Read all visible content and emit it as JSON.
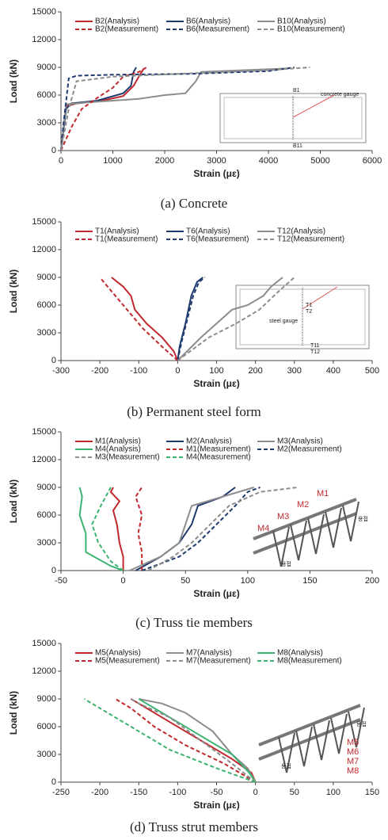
{
  "chart_data": [
    {
      "type": "line",
      "caption": "(a) Concrete",
      "x_label": "Strain (με)",
      "y_label": "Load (kN)",
      "xlim": [
        0,
        6000
      ],
      "xticks": [
        0,
        1000,
        2000,
        3000,
        4000,
        5000,
        6000
      ],
      "ylim": [
        0,
        15000
      ],
      "yticks": [
        0,
        3000,
        6000,
        9000,
        12000,
        15000
      ],
      "inset_labels": [
        "B1",
        "concrete gauge",
        "B11"
      ],
      "series": [
        {
          "name": "B2(Analysis)",
          "color": "#c0282d",
          "dash": false,
          "x": [
            0,
            100,
            300,
            800,
            1200,
            1400,
            1500,
            1600
          ],
          "values": [
            0,
            4800,
            5100,
            5400,
            5900,
            7000,
            8000,
            8900
          ]
        },
        {
          "name": "B6(Analysis)",
          "color": "#1f3a6e",
          "dash": false,
          "x": [
            0,
            100,
            200,
            700,
            1200,
            1350,
            1400,
            1450
          ],
          "values": [
            0,
            4500,
            5100,
            5400,
            6200,
            7000,
            8500,
            9000
          ]
        },
        {
          "name": "B10(Analysis)",
          "color": "#8c8c8c",
          "dash": false,
          "x": [
            0,
            100,
            500,
            1500,
            2000,
            2400,
            2600,
            2700,
            4400
          ],
          "values": [
            0,
            5000,
            5200,
            5600,
            6000,
            6200,
            7500,
            8500,
            8900
          ]
        },
        {
          "name": "B2(Measurement)",
          "color": "#c0282d",
          "dash": true,
          "x": [
            0,
            200,
            400,
            700,
            1000,
            1200,
            1500,
            1650
          ],
          "values": [
            0,
            2500,
            4500,
            5700,
            6800,
            8000,
            8500,
            9000
          ]
        },
        {
          "name": "B6(Measurement)",
          "color": "#1f3a6e",
          "dash": true,
          "x": [
            0,
            50,
            150,
            300,
            1000,
            2500,
            4000,
            4500
          ],
          "values": [
            0,
            3000,
            7800,
            8100,
            8200,
            8300,
            8600,
            9000
          ]
        },
        {
          "name": "B10(Measurement)",
          "color": "#8c8c8c",
          "dash": true,
          "x": [
            0,
            150,
            300,
            1000,
            2700,
            4000,
            4800
          ],
          "values": [
            0,
            4500,
            7500,
            8000,
            8400,
            8700,
            9000
          ]
        }
      ]
    },
    {
      "type": "line",
      "caption": "(b) Permanent steel form",
      "x_label": "Strain (με)",
      "y_label": "Load (kN)",
      "xlim": [
        -300,
        500
      ],
      "xticks": [
        -300,
        -200,
        -100,
        0,
        100,
        200,
        300,
        400,
        500
      ],
      "ylim": [
        0,
        15000
      ],
      "yticks": [
        0,
        3000,
        6000,
        9000,
        12000,
        15000
      ],
      "inset_labels": [
        "T1",
        "T2",
        "steel gauge",
        "T11",
        "T12"
      ],
      "series": [
        {
          "name": "T1(Analysis)",
          "color": "#c0282d",
          "dash": false,
          "x": [
            0,
            -10,
            -40,
            -80,
            -110,
            -120,
            -140,
            -170
          ],
          "values": [
            0,
            1000,
            2500,
            4000,
            5500,
            7000,
            8000,
            9000
          ]
        },
        {
          "name": "T6(Analysis)",
          "color": "#1f3a6e",
          "dash": false,
          "x": [
            0,
            5,
            20,
            35,
            50,
            65
          ],
          "values": [
            0,
            1500,
            4000,
            7000,
            8500,
            9000
          ]
        },
        {
          "name": "T12(Analysis)",
          "color": "#8c8c8c",
          "dash": false,
          "x": [
            0,
            60,
            100,
            140,
            180,
            220,
            240,
            270
          ],
          "values": [
            0,
            2500,
            4000,
            5500,
            6000,
            7000,
            8000,
            9000
          ]
        },
        {
          "name": "T1(Measurement)",
          "color": "#c0282d",
          "dash": true,
          "x": [
            0,
            -40,
            -90,
            -140,
            -180,
            -200
          ],
          "values": [
            0,
            1500,
            3500,
            6000,
            8000,
            9000
          ]
        },
        {
          "name": "T6(Measurement)",
          "color": "#1f3a6e",
          "dash": true,
          "x": [
            0,
            10,
            25,
            40,
            55,
            70
          ],
          "values": [
            0,
            2000,
            4500,
            7000,
            8500,
            9000
          ]
        },
        {
          "name": "T12(Measurement)",
          "color": "#8c8c8c",
          "dash": true,
          "x": [
            0,
            80,
            150,
            210,
            260,
            300
          ],
          "values": [
            0,
            2500,
            4000,
            5500,
            7500,
            9000
          ]
        }
      ]
    },
    {
      "type": "line",
      "caption": "(c) Truss tie members",
      "x_label": "Strain (με)",
      "y_label": "Load (kN)",
      "xlim": [
        -50,
        200
      ],
      "xticks": [
        -50,
        0,
        50,
        100,
        150,
        200
      ],
      "ylim": [
        0,
        15000
      ],
      "yticks": [
        0,
        3000,
        6000,
        9000,
        12000,
        15000
      ],
      "inset_labels": [
        "M1",
        "M2",
        "M3",
        "M4",
        "용접",
        "용접"
      ],
      "series": [
        {
          "name": "M1(Analysis)",
          "color": "#c0282d",
          "dash": false,
          "x": [
            0,
            0,
            -3,
            -5,
            -8,
            -3,
            -10,
            -8
          ],
          "values": [
            0,
            1500,
            3000,
            5000,
            6500,
            7500,
            8500,
            9000
          ]
        },
        {
          "name": "M2(Analysis)",
          "color": "#1f3a6e",
          "dash": false,
          "x": [
            10,
            30,
            45,
            55,
            60,
            80,
            90
          ],
          "values": [
            0,
            1500,
            3000,
            5000,
            7000,
            8000,
            9000
          ]
        },
        {
          "name": "M3(Analysis)",
          "color": "#8c8c8c",
          "dash": false,
          "x": [
            5,
            30,
            45,
            50,
            55,
            80,
            105
          ],
          "values": [
            0,
            1500,
            3000,
            5000,
            7000,
            8000,
            9000
          ]
        },
        {
          "name": "M4(Analysis)",
          "color": "#3cb371",
          "dash": false,
          "x": [
            0,
            -10,
            -30,
            -30,
            -35,
            -33,
            -35
          ],
          "values": [
            0,
            500,
            2000,
            4000,
            6000,
            8000,
            9000
          ]
        },
        {
          "name": "M1(Measurement)",
          "color": "#c0282d",
          "dash": true,
          "x": [
            15,
            15,
            12,
            15,
            10,
            15
          ],
          "values": [
            0,
            2000,
            4000,
            6000,
            8000,
            9000
          ]
        },
        {
          "name": "M2(Measurement)",
          "color": "#1f3a6e",
          "dash": true,
          "x": [
            15,
            45,
            60,
            75,
            90,
            100,
            110
          ],
          "values": [
            0,
            1500,
            3000,
            5000,
            7000,
            8500,
            9000
          ]
        },
        {
          "name": "M3(Measurement)",
          "color": "#8c8c8c",
          "dash": true,
          "x": [
            20,
            40,
            55,
            70,
            85,
            110,
            140
          ],
          "values": [
            0,
            1500,
            3000,
            5000,
            7000,
            8500,
            9000
          ]
        },
        {
          "name": "M4(Measurement)",
          "color": "#3cb371",
          "dash": true,
          "x": [
            0,
            -10,
            -20,
            -25,
            -18,
            -12,
            -10
          ],
          "values": [
            0,
            1000,
            3000,
            5000,
            7000,
            8500,
            9000
          ]
        }
      ]
    },
    {
      "type": "line",
      "caption": "(d) Truss strut members",
      "x_label": "Strain (με)",
      "y_label": "Load (kN)",
      "xlim": [
        -250,
        150
      ],
      "xticks": [
        -250,
        -200,
        -150,
        -100,
        -50,
        0,
        50,
        100,
        150
      ],
      "ylim": [
        0,
        15000
      ],
      "yticks": [
        0,
        3000,
        6000,
        9000,
        12000,
        15000
      ],
      "inset_labels": [
        "M5",
        "M6",
        "M7",
        "M8",
        "용접",
        "용접"
      ],
      "series": [
        {
          "name": "M5(Analysis)",
          "color": "#c0282d",
          "dash": false,
          "x": [
            0,
            -5,
            -30,
            -70,
            -110,
            -150,
            -160
          ],
          "values": [
            0,
            1000,
            2500,
            4500,
            6500,
            8500,
            9000
          ]
        },
        {
          "name": "M7(Analysis)",
          "color": "#8c8c8c",
          "dash": false,
          "x": [
            0,
            -10,
            -30,
            -55,
            -90,
            -120,
            -150
          ],
          "values": [
            0,
            1500,
            3000,
            5500,
            7500,
            8500,
            9000
          ]
        },
        {
          "name": "M8(Analysis)",
          "color": "#3cb371",
          "dash": false,
          "x": [
            0,
            -8,
            -30,
            -70,
            -110,
            -140,
            -150
          ],
          "values": [
            0,
            1000,
            3000,
            5000,
            7000,
            8500,
            9000
          ]
        },
        {
          "name": "M5(Measurement)",
          "color": "#c0282d",
          "dash": true,
          "x": [
            0,
            -40,
            -90,
            -130,
            -160,
            -180
          ],
          "values": [
            0,
            2000,
            4000,
            6000,
            8000,
            9000
          ]
        },
        {
          "name": "M7(Measurement)",
          "color": "#8c8c8c",
          "dash": true,
          "x": [
            0,
            -30,
            -70,
            -110,
            -150,
            -160
          ],
          "values": [
            0,
            2000,
            4500,
            7000,
            8500,
            9000
          ]
        },
        {
          "name": "M8(Measurement)",
          "color": "#3cb371",
          "dash": true,
          "x": [
            0,
            -50,
            -110,
            -160,
            -200,
            -220
          ],
          "values": [
            0,
            1500,
            3500,
            6000,
            8000,
            9000
          ]
        }
      ]
    }
  ]
}
